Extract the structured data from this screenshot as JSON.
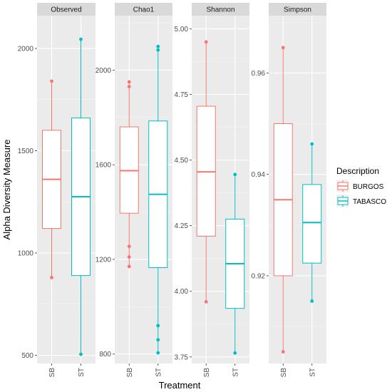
{
  "chart_data": {
    "type": "boxplot",
    "xlabel": "Treatment",
    "ylabel": "Alpha Diversity Measure",
    "categories": [
      "SB",
      "ST"
    ],
    "legend": {
      "title": "Description",
      "placement": "right",
      "entries": [
        {
          "name": "BURGOS",
          "color": "#F8766D"
        },
        {
          "name": "TABASCO",
          "color": "#00BFC4"
        }
      ]
    },
    "grid": true,
    "panels": [
      {
        "title": "Observed",
        "ylim": [
          460,
          2160
        ],
        "yticks": [
          500,
          1000,
          1500,
          2000
        ],
        "ytick_labels": [
          "500",
          "1000",
          "1500",
          "2000"
        ],
        "boxes": [
          {
            "category": "SB",
            "series": "BURGOS",
            "color": "#F8766D",
            "q1": 1120,
            "median": 1360,
            "q3": 1600,
            "lower": 880,
            "upper": 1840,
            "points": [
              880,
              1840
            ]
          },
          {
            "category": "ST",
            "series": "TABASCO",
            "color": "#00BFC4",
            "q1": 890,
            "median": 1275,
            "q3": 1660,
            "lower": 505,
            "upper": 2045,
            "points": [
              505,
              2045
            ]
          }
        ]
      },
      {
        "title": "Chao1",
        "ylim": [
          760,
          2230
        ],
        "yticks": [
          800,
          1200,
          1600,
          2000
        ],
        "ytick_labels": [
          "800",
          "1200",
          "1600",
          "2000"
        ],
        "boxes": [
          {
            "category": "SB",
            "series": "BURGOS",
            "color": "#F8766D",
            "q1": 1395,
            "median": 1575,
            "q3": 1760,
            "lower": 1170,
            "upper": 1950,
            "points": [
              1170,
              1210,
              1255,
              1930,
              1950
            ]
          },
          {
            "category": "ST",
            "series": "TABASCO",
            "color": "#00BFC4",
            "q1": 1165,
            "median": 1475,
            "q3": 1785,
            "lower": 805,
            "upper": 2100,
            "points": [
              805,
              860,
              920,
              2085,
              2100
            ]
          }
        ]
      },
      {
        "title": "Shannon",
        "ylim": [
          3.725,
          5.05
        ],
        "yticks": [
          3.75,
          4.0,
          4.25,
          4.5,
          4.75,
          5.0
        ],
        "ytick_labels": [
          "3.75",
          "4.00",
          "4.25",
          "4.50",
          "4.75",
          "5.00"
        ],
        "boxes": [
          {
            "category": "SB",
            "series": "BURGOS",
            "color": "#F8766D",
            "q1": 4.21,
            "median": 4.455,
            "q3": 4.705,
            "lower": 3.96,
            "upper": 4.95,
            "points": [
              3.96,
              4.95
            ]
          },
          {
            "category": "ST",
            "series": "TABASCO",
            "color": "#00BFC4",
            "q1": 3.935,
            "median": 4.105,
            "q3": 4.275,
            "lower": 3.765,
            "upper": 4.445,
            "points": [
              3.765,
              4.445
            ]
          }
        ]
      },
      {
        "title": "Simpson",
        "ylim": [
          0.9027,
          0.9713
        ],
        "yticks": [
          0.92,
          0.94,
          0.96
        ],
        "ytick_labels": [
          "0.92",
          "0.94",
          "0.96"
        ],
        "boxes": [
          {
            "category": "SB",
            "series": "BURGOS",
            "color": "#F8766D",
            "q1": 0.92,
            "median": 0.935,
            "q3": 0.95,
            "lower": 0.905,
            "upper": 0.965,
            "points": [
              0.905,
              0.965
            ]
          },
          {
            "category": "ST",
            "series": "TABASCO",
            "color": "#00BFC4",
            "q1": 0.9225,
            "median": 0.9305,
            "q3": 0.938,
            "lower": 0.915,
            "upper": 0.946,
            "points": [
              0.915,
              0.946
            ]
          }
        ]
      }
    ]
  }
}
